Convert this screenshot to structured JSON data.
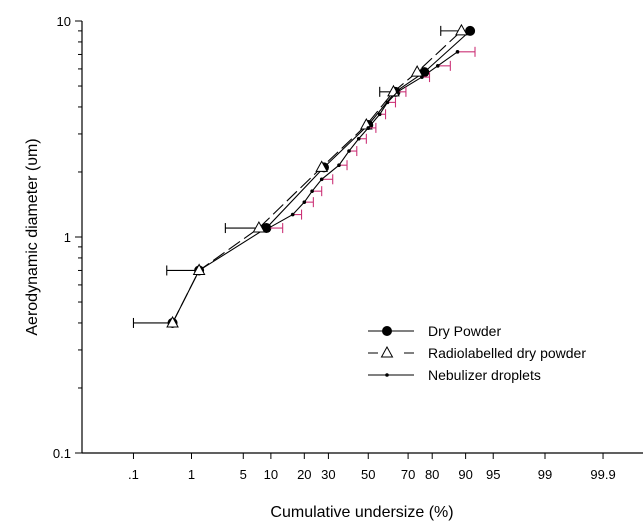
{
  "chart_data": {
    "type": "scatter",
    "x_scale": "probability",
    "y_scale": "log",
    "xlabel": "Cumulative undersize (%)",
    "ylabel": "Aerodynamic diameter (υm)",
    "ylim": [
      0.1,
      10
    ],
    "y_ticks": [
      {
        "value": 0.1,
        "label": "0.1"
      },
      {
        "value": 1,
        "label": "1"
      },
      {
        "value": 10,
        "label": "10"
      }
    ],
    "x_ticks": [
      {
        "value": 0.1,
        "label": ".1"
      },
      {
        "value": 1,
        "label": "1"
      },
      {
        "value": 5,
        "label": "5"
      },
      {
        "value": 10,
        "label": "10"
      },
      {
        "value": 20,
        "label": "20"
      },
      {
        "value": 30,
        "label": "30"
      },
      {
        "value": 50,
        "label": "50"
      },
      {
        "value": 70,
        "label": "70"
      },
      {
        "value": 80,
        "label": "80"
      },
      {
        "value": 90,
        "label": "90"
      },
      {
        "value": 95,
        "label": "95"
      },
      {
        "value": 99,
        "label": "99"
      },
      {
        "value": 99.9,
        "label": "99.9"
      }
    ],
    "legend_position": "bottom-right",
    "series": [
      {
        "name": "Dry Powder",
        "marker": "filled-circle",
        "line": "solid",
        "error_color": "#000000",
        "points": [
          {
            "x": 0.5,
            "y": 0.4
          },
          {
            "x": 1.3,
            "y": 0.7
          },
          {
            "x": 9,
            "y": 1.1
          },
          {
            "x": 28,
            "y": 2.1
          },
          {
            "x": 50,
            "y": 3.3
          },
          {
            "x": 64,
            "y": 4.7
          },
          {
            "x": 77,
            "y": 5.8
          },
          {
            "x": 91,
            "y": 9
          }
        ]
      },
      {
        "name": "Radiolabelled dry powder",
        "marker": "open-triangle",
        "line": "dashed",
        "error_color": "#000000",
        "points": [
          {
            "x": 0.5,
            "y": 0.4,
            "xerr_low": 0.1
          },
          {
            "x": 1.3,
            "y": 0.7,
            "xerr_low": 0.4
          },
          {
            "x": 7.5,
            "y": 1.1,
            "xerr_low": 3
          },
          {
            "x": 27,
            "y": 2.1
          },
          {
            "x": 49,
            "y": 3.3
          },
          {
            "x": 63,
            "y": 4.7,
            "xerr_low": 56
          },
          {
            "x": 74,
            "y": 5.8
          },
          {
            "x": 89,
            "y": 9,
            "xerr_low": 83
          }
        ]
      },
      {
        "name": "Nebulizer droplets",
        "marker": "small-dot",
        "line": "solid",
        "error_color": "#cc3377",
        "points": [
          {
            "x": 9.5,
            "y": 1.1,
            "xerr_high": 13
          },
          {
            "x": 16,
            "y": 1.27,
            "xerr_high": 19
          },
          {
            "x": 20,
            "y": 1.45,
            "xerr_high": 23.5
          },
          {
            "x": 23,
            "y": 1.63,
            "xerr_high": 27
          },
          {
            "x": 27,
            "y": 1.85,
            "xerr_high": 32
          },
          {
            "x": 35,
            "y": 2.15,
            "xerr_high": 39
          },
          {
            "x": 40,
            "y": 2.5,
            "xerr_high": 44
          },
          {
            "x": 45,
            "y": 2.85,
            "xerr_high": 49
          },
          {
            "x": 50,
            "y": 3.2,
            "xerr_high": 54
          },
          {
            "x": 56,
            "y": 3.7,
            "xerr_high": 59
          },
          {
            "x": 60,
            "y": 4.2,
            "xerr_high": 64
          },
          {
            "x": 65,
            "y": 4.7,
            "xerr_high": 69
          },
          {
            "x": 76,
            "y": 5.5,
            "xerr_high": 79
          },
          {
            "x": 82,
            "y": 6.2,
            "xerr_high": 86
          },
          {
            "x": 88,
            "y": 7.2,
            "xerr_high": 92
          }
        ]
      }
    ]
  }
}
